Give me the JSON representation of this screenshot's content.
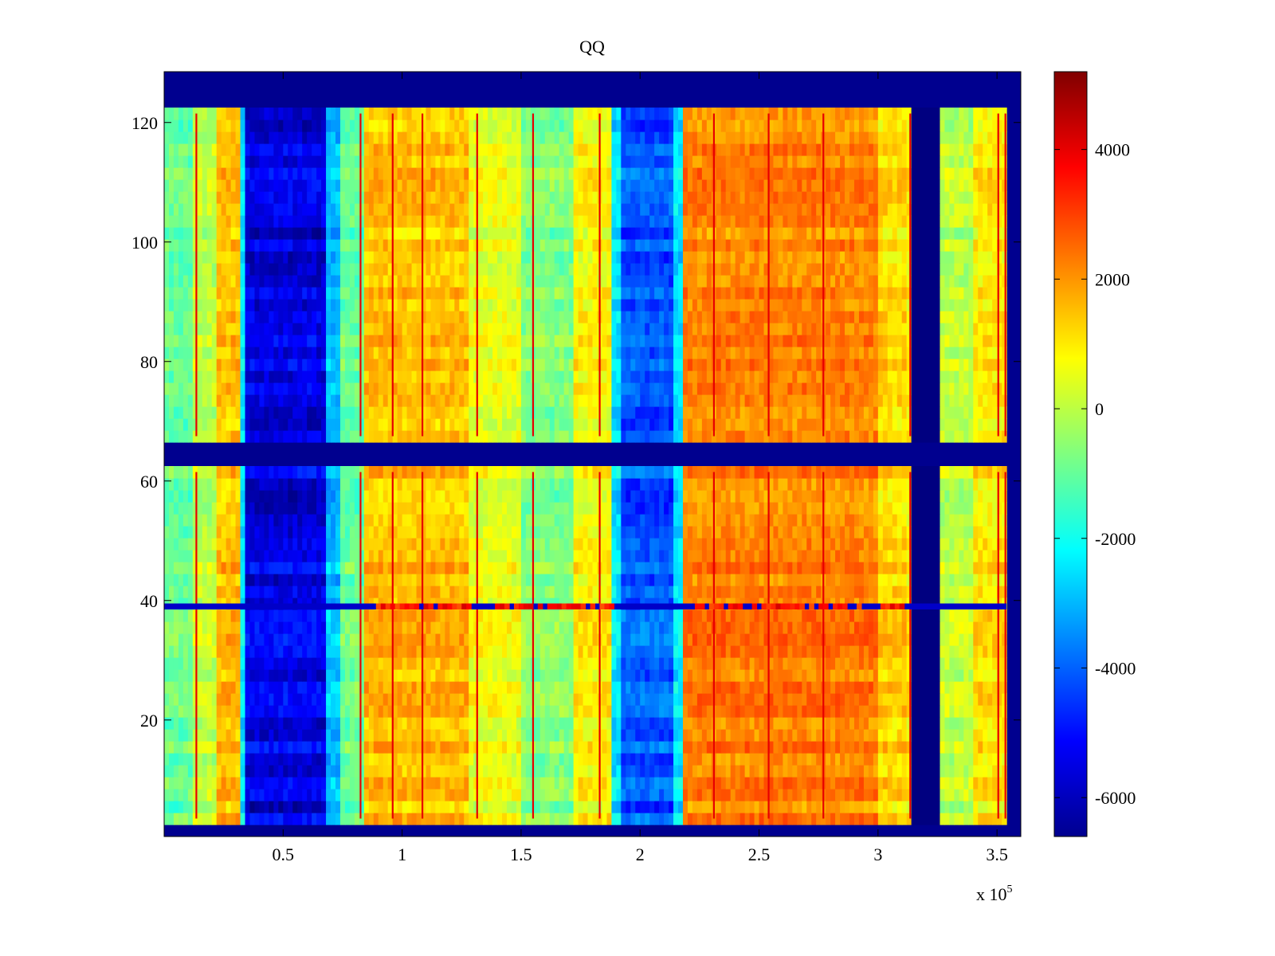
{
  "chart_data": {
    "type": "heatmap",
    "title": "QQ",
    "xlabel": "",
    "ylabel": "",
    "x_multiplier_label": "x 10",
    "x_multiplier_exponent": "5",
    "xlim": [
      0,
      360000
    ],
    "ylim": [
      0.5,
      128.5
    ],
    "x_ticks": [
      {
        "value": 50000,
        "label": "0.5"
      },
      {
        "value": 100000,
        "label": "1"
      },
      {
        "value": 150000,
        "label": "1.5"
      },
      {
        "value": 200000,
        "label": "2"
      },
      {
        "value": 250000,
        "label": "2.5"
      },
      {
        "value": 300000,
        "label": "3"
      },
      {
        "value": 350000,
        "label": "3.5"
      }
    ],
    "y_ticks": [
      {
        "value": 20,
        "label": "20"
      },
      {
        "value": 40,
        "label": "40"
      },
      {
        "value": 60,
        "label": "60"
      },
      {
        "value": 80,
        "label": "80"
      },
      {
        "value": 100,
        "label": "100"
      },
      {
        "value": 120,
        "label": "120"
      }
    ],
    "colorbar": {
      "colormap": "jet",
      "clim": [
        -6600,
        5200
      ],
      "ticks": [
        {
          "value": 4000,
          "label": "4000"
        },
        {
          "value": 2000,
          "label": "2000"
        },
        {
          "value": 0,
          "label": "0"
        },
        {
          "value": -2000,
          "label": "-2000"
        },
        {
          "value": -4000,
          "label": "-4000"
        },
        {
          "value": -6000,
          "label": "-6000"
        }
      ]
    },
    "column_profile": [
      {
        "x0": 0,
        "x1": 12000,
        "value": -1000
      },
      {
        "x0": 12000,
        "x1": 22000,
        "value": 0
      },
      {
        "x0": 22000,
        "x1": 32000,
        "value": 1500
      },
      {
        "x0": 32000,
        "x1": 35000,
        "value": -2500
      },
      {
        "x0": 35000,
        "x1": 68000,
        "value": -5500
      },
      {
        "x0": 68000,
        "x1": 74000,
        "value": -3000
      },
      {
        "x0": 74000,
        "x1": 84000,
        "value": -1000
      },
      {
        "x0": 84000,
        "x1": 128000,
        "value": 1500
      },
      {
        "x0": 128000,
        "x1": 150000,
        "value": 500
      },
      {
        "x0": 150000,
        "x1": 172000,
        "value": -700
      },
      {
        "x0": 172000,
        "x1": 189000,
        "value": 800
      },
      {
        "x0": 189000,
        "x1": 193000,
        "value": -2500
      },
      {
        "x0": 193000,
        "x1": 214000,
        "value": -4200
      },
      {
        "x0": 214000,
        "x1": 218000,
        "value": -2500
      },
      {
        "x0": 218000,
        "x1": 300000,
        "value": 2200
      },
      {
        "x0": 300000,
        "x1": 312000,
        "value": 1200
      },
      {
        "x0": 312000,
        "x1": 315000,
        "value": 800
      },
      {
        "x0": 315000,
        "x1": 326000,
        "value": -6600
      },
      {
        "x0": 326000,
        "x1": 340000,
        "value": 0
      },
      {
        "x0": 340000,
        "x1": 354000,
        "value": 1000
      }
    ],
    "red_streak_x": [
      13500,
      82500,
      96000,
      108500,
      131500,
      155000,
      183000,
      231000,
      254000,
      277000,
      313500,
      350500,
      353500
    ],
    "empty_row_bands": [
      {
        "y0": 0.5,
        "y1": 3.5
      },
      {
        "y0": 61.5,
        "y1": 67.5
      },
      {
        "y0": 121.5,
        "y1": 128.5
      }
    ],
    "anomalous_row": {
      "y0": 38.5,
      "y1": 39.5,
      "value": 3500,
      "x_start": 85000,
      "x_end": 310000
    },
    "empty_x_after": 354000
  }
}
